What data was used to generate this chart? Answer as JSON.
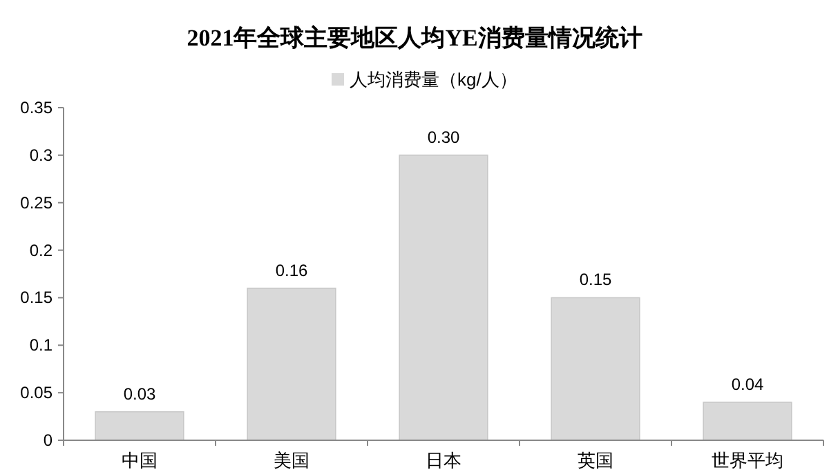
{
  "chart_data": {
    "type": "bar",
    "title": "2021年全球主要地区人均YE消费量情况统计",
    "categories": [
      "中国",
      "美国",
      "日本",
      "英国",
      "世界平均"
    ],
    "series": [
      {
        "name": "人均消费量（kg/人）",
        "color": "#d9d9d9",
        "values": [
          0.03,
          0.16,
          0.3,
          0.15,
          0.04
        ],
        "value_labels": [
          "0.03",
          "0.16",
          "0.30",
          "0.15",
          "0.04"
        ]
      }
    ],
    "ylim": [
      0,
      0.35
    ],
    "yticks": [
      0,
      0.05,
      0.1,
      0.15,
      0.2,
      0.25,
      0.3,
      0.35
    ],
    "grid": false,
    "legend": "top"
  }
}
